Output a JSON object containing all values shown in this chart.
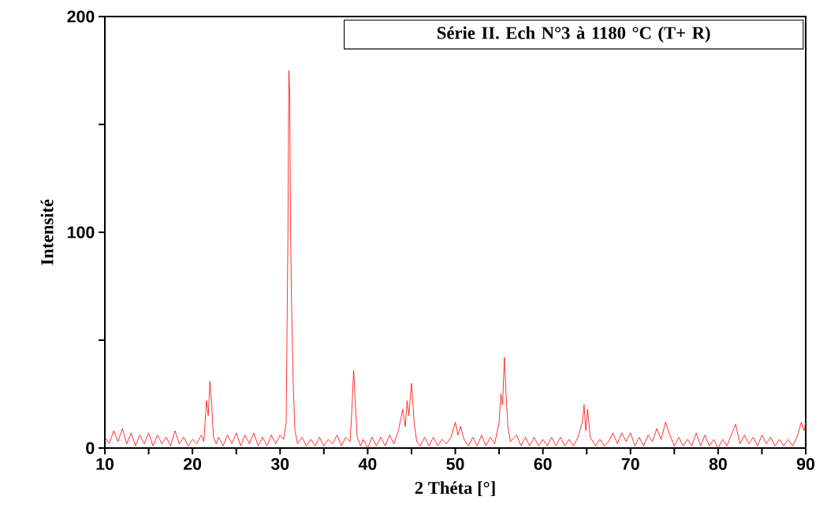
{
  "chart_data": {
    "type": "line",
    "title": "Série II. Ech N°3 à 1180 °C (T+ R)",
    "xlabel": "2 Théta [°]",
    "ylabel": "Intensité",
    "xlim": [
      10,
      90
    ],
    "ylim": [
      0,
      200
    ],
    "xticks": [
      10,
      {
        "value": 15,
        "label": null
      },
      20,
      {
        "value": 25,
        "label": null
      },
      30,
      {
        "value": 35,
        "label": null
      },
      40,
      {
        "value": 45,
        "label": null
      },
      50,
      {
        "value": 55,
        "label": null
      },
      60,
      {
        "value": 65,
        "label": null
      },
      70,
      {
        "value": 75,
        "label": null
      },
      80,
      {
        "value": 85,
        "label": null
      },
      90
    ],
    "yticks": [
      0,
      {
        "value": 50,
        "label": null
      },
      100,
      {
        "value": 150,
        "label": null
      },
      200
    ],
    "series": [
      {
        "color": "#ff0000",
        "x": [
          10,
          10.5,
          11,
          11.5,
          12,
          12.5,
          13,
          13.5,
          14,
          14.5,
          15,
          15.5,
          16,
          16.5,
          17,
          17.5,
          18,
          18.5,
          19,
          19.5,
          20,
          20.5,
          21,
          21.3,
          21.6,
          21.8,
          22,
          22.2,
          22.4,
          22.7,
          23,
          23.5,
          24,
          24.5,
          25,
          25.5,
          26,
          26.5,
          27,
          27.5,
          28,
          28.5,
          29,
          29.5,
          30,
          30.4,
          30.7,
          30.9,
          31.0,
          31.1,
          31.2,
          31.3,
          31.5,
          31.7,
          32,
          32.5,
          33,
          33.5,
          34,
          34.5,
          35,
          35.5,
          36,
          36.5,
          37,
          37.5,
          38,
          38.2,
          38.4,
          38.6,
          38.8,
          39.2,
          39.5,
          40,
          40.5,
          41,
          41.5,
          42,
          42.5,
          43,
          43.5,
          44,
          44.3,
          44.5,
          44.7,
          45,
          45.3,
          45.6,
          46,
          46.5,
          47,
          47.5,
          48,
          48.5,
          49,
          49.5,
          50,
          50.3,
          50.6,
          51,
          51.5,
          52,
          52.5,
          53,
          53.5,
          54,
          54.5,
          55,
          55.2,
          55.4,
          55.6,
          55.8,
          56,
          56.3,
          57,
          57.5,
          58,
          58.5,
          59,
          59.5,
          60,
          60.5,
          61,
          61.5,
          62,
          62.5,
          63,
          63.5,
          64,
          64.5,
          64.7,
          64.9,
          65.1,
          65.4,
          66,
          66.5,
          67,
          67.5,
          68,
          68.5,
          69,
          69.5,
          70,
          70.5,
          71,
          71.5,
          72,
          72.5,
          73,
          73.5,
          74,
          74.5,
          75,
          75.5,
          76,
          76.5,
          77,
          77.5,
          78,
          78.5,
          79,
          79.5,
          80,
          80.5,
          81,
          81.5,
          82,
          82.5,
          83,
          83.5,
          84,
          84.5,
          85,
          85.5,
          86,
          86.5,
          87,
          87.5,
          88,
          88.5,
          89,
          89.5,
          89.8,
          90
        ],
        "values": [
          5,
          2,
          8,
          3,
          9,
          2,
          7,
          1,
          6,
          2,
          7,
          1,
          6,
          2,
          5,
          1,
          8,
          2,
          5,
          1,
          4,
          2,
          6,
          3,
          22,
          15,
          31,
          20,
          5,
          2,
          5,
          1,
          6,
          2,
          7,
          1,
          6,
          2,
          7,
          1,
          5,
          1,
          6,
          2,
          6,
          4,
          12,
          100,
          175,
          165,
          100,
          70,
          30,
          8,
          2,
          5,
          1,
          4,
          1,
          5,
          1,
          4,
          2,
          6,
          1,
          5,
          3,
          18,
          36,
          20,
          5,
          1,
          4,
          0,
          5,
          1,
          5,
          1,
          6,
          2,
          8,
          18,
          10,
          22,
          15,
          30,
          12,
          3,
          1,
          5,
          1,
          5,
          1,
          4,
          2,
          5,
          12,
          6,
          10,
          4,
          1,
          5,
          1,
          6,
          1,
          5,
          2,
          12,
          25,
          20,
          42,
          25,
          10,
          3,
          6,
          1,
          5,
          1,
          5,
          1,
          4,
          1,
          5,
          1,
          5,
          1,
          4,
          1,
          5,
          12,
          20,
          8,
          18,
          5,
          1,
          4,
          1,
          3,
          7,
          2,
          7,
          3,
          7,
          1,
          5,
          1,
          6,
          3,
          9,
          4,
          12,
          6,
          1,
          5,
          1,
          4,
          1,
          7,
          1,
          6,
          1,
          4,
          0,
          4,
          1,
          6,
          11,
          2,
          6,
          2,
          5,
          1,
          6,
          2,
          5,
          1,
          4,
          1,
          4,
          1,
          5,
          12,
          8,
          12
        ]
      }
    ]
  }
}
